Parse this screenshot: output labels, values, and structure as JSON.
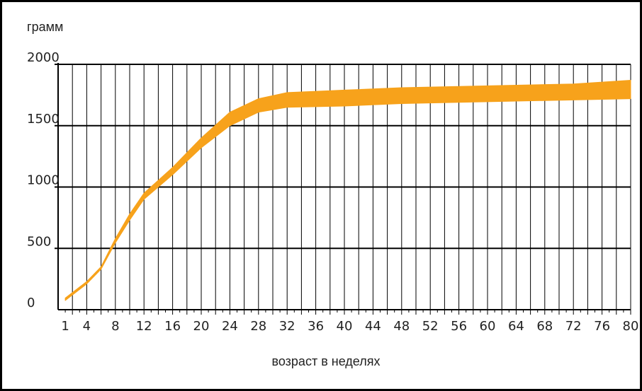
{
  "chart_data": {
    "type": "area",
    "ylabel": "грамм",
    "xlabel": "возраст в неделях",
    "ylim": [
      0,
      2000
    ],
    "xlim": [
      0,
      80
    ],
    "y_ticks": [
      0,
      500,
      1000,
      1500,
      2000
    ],
    "x_ticks": [
      1,
      4,
      8,
      12,
      16,
      20,
      24,
      28,
      32,
      36,
      40,
      44,
      48,
      52,
      56,
      60,
      64,
      68,
      72,
      76,
      80
    ],
    "grid": true,
    "band_color": "#f7a21b",
    "series": [
      {
        "upper": [
          [
            1,
            95
          ],
          [
            4,
            230
          ],
          [
            6,
            350
          ],
          [
            8,
            580
          ],
          [
            10,
            780
          ],
          [
            12,
            950
          ],
          [
            16,
            1160
          ],
          [
            20,
            1400
          ],
          [
            24,
            1610
          ],
          [
            28,
            1720
          ],
          [
            32,
            1770
          ],
          [
            40,
            1790
          ],
          [
            48,
            1810
          ],
          [
            56,
            1820
          ],
          [
            64,
            1830
          ],
          [
            72,
            1840
          ],
          [
            80,
            1870
          ]
        ],
        "lower": [
          [
            1,
            75
          ],
          [
            4,
            210
          ],
          [
            6,
            330
          ],
          [
            8,
            545
          ],
          [
            10,
            730
          ],
          [
            12,
            900
          ],
          [
            16,
            1100
          ],
          [
            20,
            1320
          ],
          [
            24,
            1500
          ],
          [
            28,
            1610
          ],
          [
            32,
            1650
          ],
          [
            40,
            1660
          ],
          [
            48,
            1680
          ],
          [
            56,
            1690
          ],
          [
            64,
            1700
          ],
          [
            72,
            1710
          ],
          [
            80,
            1720
          ]
        ]
      }
    ]
  }
}
